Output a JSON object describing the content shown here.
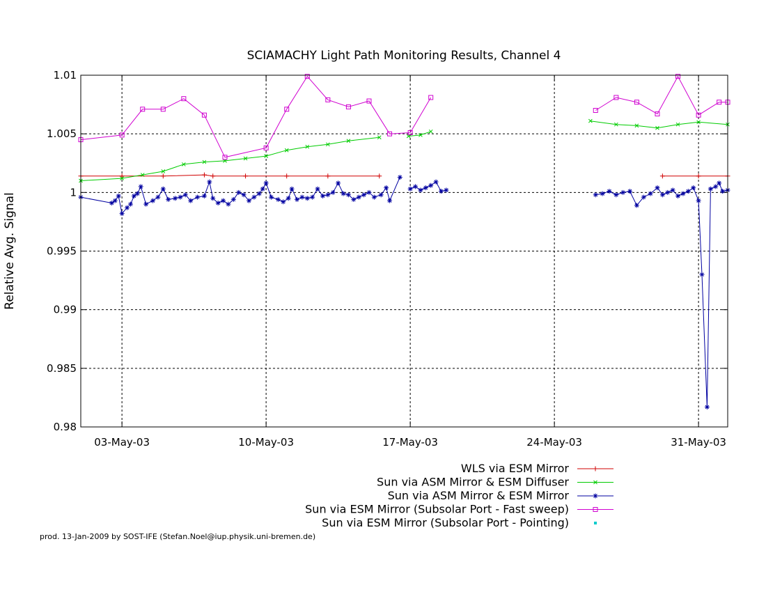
{
  "chart_data": {
    "type": "line",
    "title": "SCIAMACHY Light Path Monitoring Results, Channel 4",
    "ylabel": "Relative Avg. Signal",
    "xlabel": "",
    "xlim": [
      "2003-05-01T00:00",
      "2003-06-01T10:00"
    ],
    "ylim": [
      0.98,
      1.01
    ],
    "grid": true,
    "legend_position": "bottom-right",
    "x_ticks": [
      {
        "date": "2003-05-03",
        "label": "03-May-03"
      },
      {
        "date": "2003-05-10",
        "label": "10-May-03"
      },
      {
        "date": "2003-05-17",
        "label": "17-May-03"
      },
      {
        "date": "2003-05-24",
        "label": "24-May-03"
      },
      {
        "date": "2003-05-31",
        "label": "31-May-03"
      }
    ],
    "y_ticks": [
      {
        "value": 0.98,
        "label": "0.98"
      },
      {
        "value": 0.985,
        "label": "0.985"
      },
      {
        "value": 0.99,
        "label": "0.99"
      },
      {
        "value": 0.995,
        "label": "0.995"
      },
      {
        "value": 1.0,
        "label": "1"
      },
      {
        "value": 1.005,
        "label": "1.005"
      },
      {
        "value": 1.01,
        "label": "1.01"
      }
    ],
    "series": [
      {
        "name": "WLS via ESM Mirror",
        "color": "#d00000",
        "marker": "plus",
        "segments": [
          [
            [
              "2003-05-01T00:00",
              1.0014
            ],
            [
              "2003-05-03T00:00",
              1.0014
            ],
            [
              "2003-05-05T00:00",
              1.0014
            ],
            [
              "2003-05-07T00:00",
              1.0015
            ],
            [
              "2003-05-07T10:00",
              1.0014
            ],
            [
              "2003-05-09T00:00",
              1.0014
            ],
            [
              "2003-05-11T00:00",
              1.0014
            ],
            [
              "2003-05-13T00:00",
              1.0014
            ],
            [
              "2003-05-15T12:00",
              1.0014
            ]
          ],
          [
            [
              "2003-05-29T06:00",
              1.0014
            ],
            [
              "2003-05-31T00:00",
              1.0014
            ],
            [
              "2003-06-01T10:00",
              1.0014
            ]
          ]
        ]
      },
      {
        "name": "Sun via ASM Mirror & ESM Diffuser",
        "color": "#00cc00",
        "marker": "cross",
        "segments": [
          [
            [
              "2003-05-01T00:00",
              1.001
            ],
            [
              "2003-05-03T00:00",
              1.0012
            ],
            [
              "2003-05-04T00:00",
              1.0015
            ],
            [
              "2003-05-05T00:00",
              1.0018
            ],
            [
              "2003-05-06T00:00",
              1.0024
            ],
            [
              "2003-05-07T00:00",
              1.0026
            ],
            [
              "2003-05-08T00:00",
              1.0027
            ],
            [
              "2003-05-09T00:00",
              1.0029
            ],
            [
              "2003-05-10T00:00",
              1.0031
            ],
            [
              "2003-05-11T00:00",
              1.0036
            ],
            [
              "2003-05-12T00:00",
              1.0039
            ],
            [
              "2003-05-13T00:00",
              1.0041
            ],
            [
              "2003-05-14T00:00",
              1.0044
            ],
            [
              "2003-05-15T12:00",
              1.0047
            ]
          ],
          [
            [
              "2003-05-16T22:00",
              1.0048
            ],
            [
              "2003-05-17T12:00",
              1.0049
            ],
            [
              "2003-05-18T00:00",
              1.0052
            ]
          ],
          [
            [
              "2003-05-25T18:00",
              1.0061
            ],
            [
              "2003-05-27T00:00",
              1.0058
            ],
            [
              "2003-05-28T00:00",
              1.0057
            ],
            [
              "2003-05-29T00:00",
              1.0055
            ],
            [
              "2003-05-30T00:00",
              1.0058
            ],
            [
              "2003-05-31T00:00",
              1.006
            ],
            [
              "2003-06-01T10:00",
              1.0058
            ]
          ]
        ]
      },
      {
        "name": "Sun via ASM Mirror & ESM Mirror",
        "color": "#0000a0",
        "marker": "star",
        "segments": [
          [
            [
              "2003-05-01T00:00",
              0.9996
            ],
            [
              "2003-05-02T12:00",
              0.9991
            ],
            [
              "2003-05-02T16:00",
              0.9993
            ],
            [
              "2003-05-02T20:00",
              0.9997
            ],
            [
              "2003-05-03T00:00",
              0.9982
            ],
            [
              "2003-05-03T06:00",
              0.9987
            ],
            [
              "2003-05-03T10:00",
              0.999
            ],
            [
              "2003-05-03T14:00",
              0.9997
            ],
            [
              "2003-05-03T18:00",
              0.9999
            ],
            [
              "2003-05-03T22:00",
              1.0005
            ],
            [
              "2003-05-04T04:00",
              0.999
            ],
            [
              "2003-05-04T12:00",
              0.9993
            ],
            [
              "2003-05-04T18:00",
              0.9996
            ],
            [
              "2003-05-05T00:00",
              1.0003
            ],
            [
              "2003-05-05T06:00",
              0.9994
            ],
            [
              "2003-05-05T14:00",
              0.9995
            ],
            [
              "2003-05-05T20:00",
              0.9996
            ],
            [
              "2003-05-06T02:00",
              0.9998
            ],
            [
              "2003-05-06T08:00",
              0.9993
            ],
            [
              "2003-05-06T16:00",
              0.9996
            ],
            [
              "2003-05-07T00:00",
              0.9997
            ],
            [
              "2003-05-07T06:00",
              1.0009
            ],
            [
              "2003-05-07T10:00",
              0.9995
            ],
            [
              "2003-05-07T16:00",
              0.9991
            ],
            [
              "2003-05-07T22:00",
              0.9993
            ],
            [
              "2003-05-08T04:00",
              0.999
            ],
            [
              "2003-05-08T10:00",
              0.9994
            ],
            [
              "2003-05-08T16:00",
              1.0
            ],
            [
              "2003-05-08T22:00",
              0.9998
            ],
            [
              "2003-05-09T04:00",
              0.9993
            ],
            [
              "2003-05-09T10:00",
              0.9996
            ],
            [
              "2003-05-09T16:00",
              0.9999
            ],
            [
              "2003-05-09T20:00",
              1.0003
            ],
            [
              "2003-05-10T00:00",
              1.0008
            ],
            [
              "2003-05-10T06:00",
              0.9996
            ],
            [
              "2003-05-10T14:00",
              0.9994
            ],
            [
              "2003-05-10T20:00",
              0.9992
            ],
            [
              "2003-05-11T02:00",
              0.9995
            ],
            [
              "2003-05-11T06:00",
              1.0003
            ],
            [
              "2003-05-11T12:00",
              0.9994
            ],
            [
              "2003-05-11T18:00",
              0.9996
            ],
            [
              "2003-05-12T00:00",
              0.9995
            ],
            [
              "2003-05-12T06:00",
              0.9996
            ],
            [
              "2003-05-12T12:00",
              1.0003
            ],
            [
              "2003-05-12T18:00",
              0.9997
            ],
            [
              "2003-05-13T00:00",
              0.9998
            ],
            [
              "2003-05-13T06:00",
              1.0
            ],
            [
              "2003-05-13T12:00",
              1.0008
            ],
            [
              "2003-05-13T18:00",
              0.9999
            ],
            [
              "2003-05-14T00:00",
              0.9998
            ],
            [
              "2003-05-14T06:00",
              0.9994
            ],
            [
              "2003-05-14T12:00",
              0.9996
            ],
            [
              "2003-05-14T18:00",
              0.9998
            ],
            [
              "2003-05-15T00:00",
              1.0
            ],
            [
              "2003-05-15T06:00",
              0.9996
            ],
            [
              "2003-05-15T14:00",
              0.9998
            ],
            [
              "2003-05-15T20:00",
              1.0004
            ],
            [
              "2003-05-16T00:00",
              0.9993
            ],
            [
              "2003-05-16T12:00",
              1.0013
            ]
          ],
          [
            [
              "2003-05-17T00:00",
              1.0003
            ],
            [
              "2003-05-17T06:00",
              1.0005
            ],
            [
              "2003-05-17T12:00",
              1.0002
            ],
            [
              "2003-05-17T18:00",
              1.0004
            ],
            [
              "2003-05-18T00:00",
              1.0006
            ],
            [
              "2003-05-18T06:00",
              1.0009
            ],
            [
              "2003-05-18T12:00",
              1.0001
            ],
            [
              "2003-05-18T18:00",
              1.0002
            ]
          ],
          [
            [
              "2003-05-26T00:00",
              0.9998
            ],
            [
              "2003-05-26T08:00",
              0.9999
            ],
            [
              "2003-05-26T16:00",
              1.0001
            ],
            [
              "2003-05-27T00:00",
              0.9998
            ],
            [
              "2003-05-27T08:00",
              1.0
            ],
            [
              "2003-05-27T16:00",
              1.0001
            ],
            [
              "2003-05-28T00:00",
              0.9989
            ],
            [
              "2003-05-28T08:00",
              0.9996
            ],
            [
              "2003-05-28T16:00",
              0.9999
            ],
            [
              "2003-05-29T00:00",
              1.0004
            ],
            [
              "2003-05-29T06:00",
              0.9998
            ],
            [
              "2003-05-29T12:00",
              1.0
            ],
            [
              "2003-05-29T18:00",
              1.0002
            ],
            [
              "2003-05-30T00:00",
              0.9997
            ],
            [
              "2003-05-30T06:00",
              0.9999
            ],
            [
              "2003-05-30T12:00",
              1.0001
            ],
            [
              "2003-05-30T18:00",
              1.0004
            ],
            [
              "2003-05-31T00:00",
              0.9993
            ],
            [
              "2003-05-31T04:00",
              0.993
            ],
            [
              "2003-05-31T10:00",
              0.9817
            ],
            [
              "2003-05-31T14:00",
              1.0003
            ],
            [
              "2003-05-31T20:00",
              1.0005
            ],
            [
              "2003-06-01T00:00",
              1.0008
            ],
            [
              "2003-06-01T04:00",
              1.0001
            ],
            [
              "2003-06-01T10:00",
              1.0002
            ]
          ]
        ]
      },
      {
        "name": "Sun via ESM Mirror (Subsolar Port - Fast sweep)",
        "color": "#d000d0",
        "marker": "square",
        "segments": [
          [
            [
              "2003-05-01T00:00",
              1.0045
            ],
            [
              "2003-05-03T00:00",
              1.0049
            ],
            [
              "2003-05-04T00:00",
              1.0071
            ],
            [
              "2003-05-05T00:00",
              1.0071
            ],
            [
              "2003-05-06T00:00",
              1.008
            ],
            [
              "2003-05-07T00:00",
              1.0066
            ],
            [
              "2003-05-08T00:00",
              1.003
            ],
            [
              "2003-05-10T00:00",
              1.0038
            ],
            [
              "2003-05-11T00:00",
              1.0071
            ],
            [
              "2003-05-12T00:00",
              1.0099
            ],
            [
              "2003-05-13T00:00",
              1.0079
            ],
            [
              "2003-05-14T00:00",
              1.0073
            ],
            [
              "2003-05-15T00:00",
              1.0078
            ],
            [
              "2003-05-16T00:00",
              1.005
            ],
            [
              "2003-05-17T00:00",
              1.0051
            ],
            [
              "2003-05-18T00:00",
              1.0081
            ]
          ],
          [
            [
              "2003-05-26T00:00",
              1.007
            ],
            [
              "2003-05-27T00:00",
              1.0081
            ],
            [
              "2003-05-28T00:00",
              1.0077
            ],
            [
              "2003-05-29T00:00",
              1.0067
            ],
            [
              "2003-05-30T00:00",
              1.0099
            ],
            [
              "2003-05-31T00:00",
              1.0066
            ],
            [
              "2003-06-01T00:00",
              1.0077
            ],
            [
              "2003-06-01T10:00",
              1.0077
            ]
          ]
        ]
      },
      {
        "name": "Sun via ESM Mirror (Subsolar Port - Pointing)",
        "color": "#00cccc",
        "marker": "dot",
        "segments": []
      }
    ],
    "footer": "prod. 13-Jan-2009 by SOST-IFE (Stefan.Noel@iup.physik.uni-bremen.de)"
  }
}
